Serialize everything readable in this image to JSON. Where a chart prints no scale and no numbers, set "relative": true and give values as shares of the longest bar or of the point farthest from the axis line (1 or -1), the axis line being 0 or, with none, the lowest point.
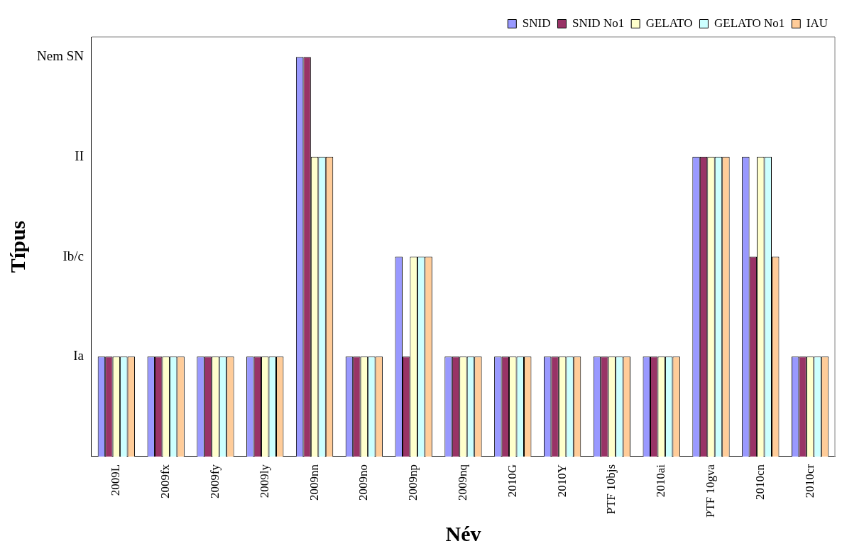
{
  "chart_data": {
    "type": "bar",
    "xlabel": "Név",
    "ylabel": "Típus",
    "relative": true,
    "categories": [
      "2009L",
      "2009fx",
      "2009fy",
      "2009ly",
      "2009nn",
      "2009no",
      "2009np",
      "2009nq",
      "2010G",
      "2010Y",
      "PTF 10bjs",
      "2010ai",
      "PTF 10gva",
      "2010cn",
      "2010cr"
    ],
    "series": [
      {
        "name": "SNID",
        "color": "#9999ff",
        "values": [
          0.25,
          0.25,
          0.25,
          0.25,
          1,
          0.25,
          0.5,
          0.25,
          0.25,
          0.25,
          0.25,
          0.25,
          0.75,
          0.75,
          0.25
        ]
      },
      {
        "name": "SNID No1",
        "color": "#993366",
        "values": [
          0.25,
          0.25,
          0.25,
          0.25,
          1,
          0.25,
          0.25,
          0.25,
          0.25,
          0.25,
          0.25,
          0.25,
          0.75,
          0.5,
          0.25
        ]
      },
      {
        "name": "GELATO",
        "color": "#ffffcc",
        "values": [
          0.25,
          0.25,
          0.25,
          0.25,
          0.75,
          0.25,
          0.5,
          0.25,
          0.25,
          0.25,
          0.25,
          0.25,
          0.75,
          0.75,
          0.25
        ]
      },
      {
        "name": "GELATO No1",
        "color": "#ccffff",
        "values": [
          0.25,
          0.25,
          0.25,
          0.25,
          0.75,
          0.25,
          0.5,
          0.25,
          0.25,
          0.25,
          0.25,
          0.25,
          0.75,
          0.75,
          0.25
        ]
      },
      {
        "name": "IAU",
        "color": "#ffcc99",
        "values": [
          0.25,
          0.25,
          0.25,
          0.25,
          0.75,
          0.25,
          0.5,
          0.25,
          0.25,
          0.25,
          0.25,
          0.25,
          0.75,
          0.5,
          0.25
        ]
      }
    ],
    "annotations": [
      "Ia",
      "Ib/c",
      "II",
      "Nem SN"
    ],
    "grid": false,
    "legend": "top right"
  }
}
